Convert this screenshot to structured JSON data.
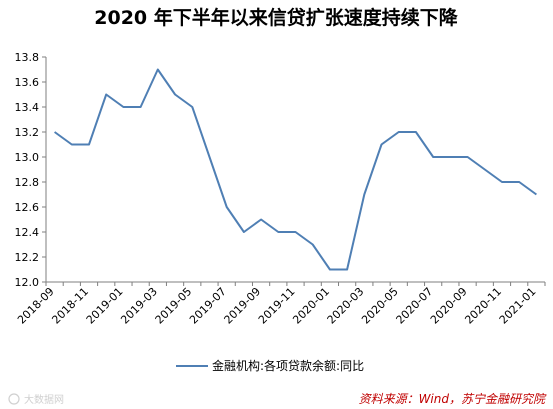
{
  "chart_data": {
    "type": "line",
    "title": "2020 年下半年以来信贷扩张速度持续下降",
    "xlabel": "",
    "ylabel": "",
    "ylim": [
      12.0,
      13.8
    ],
    "yticks": [
      "12.0",
      "12.2",
      "12.4",
      "12.6",
      "12.8",
      "13.0",
      "13.2",
      "13.4",
      "13.6",
      "13.8"
    ],
    "x_tick_labels": [
      "2018-09",
      "2018-11",
      "2019-01",
      "2019-03",
      "2019-05",
      "2019-07",
      "2019-09",
      "2019-11",
      "2020-01",
      "2020-03",
      "2020-05",
      "2020-07",
      "2020-09",
      "2020-11",
      "2021-01"
    ],
    "x": [
      "2018-09",
      "2018-10",
      "2018-11",
      "2018-12",
      "2019-01",
      "2019-02",
      "2019-03",
      "2019-04",
      "2019-05",
      "2019-06",
      "2019-07",
      "2019-08",
      "2019-09",
      "2019-10",
      "2019-11",
      "2019-12",
      "2020-01",
      "2020-02",
      "2020-03",
      "2020-04",
      "2020-05",
      "2020-06",
      "2020-07",
      "2020-08",
      "2020-09",
      "2020-10",
      "2020-11",
      "2020-12",
      "2021-01"
    ],
    "grid": false,
    "legend_position": "bottom",
    "series": [
      {
        "name": "金融机构:各项贷款余额:同比",
        "color": "#4f7fb4",
        "values": [
          13.2,
          13.1,
          13.1,
          13.5,
          13.4,
          13.4,
          13.7,
          13.5,
          13.4,
          13.0,
          12.6,
          12.4,
          12.5,
          12.4,
          12.4,
          12.3,
          12.1,
          12.1,
          12.7,
          13.1,
          13.2,
          13.2,
          13.0,
          13.0,
          13.0,
          12.9,
          12.8,
          12.8,
          12.7
        ]
      }
    ]
  },
  "source_note": "资料来源：Wind，苏宁金融研究院",
  "watermark_text": "大数据网"
}
